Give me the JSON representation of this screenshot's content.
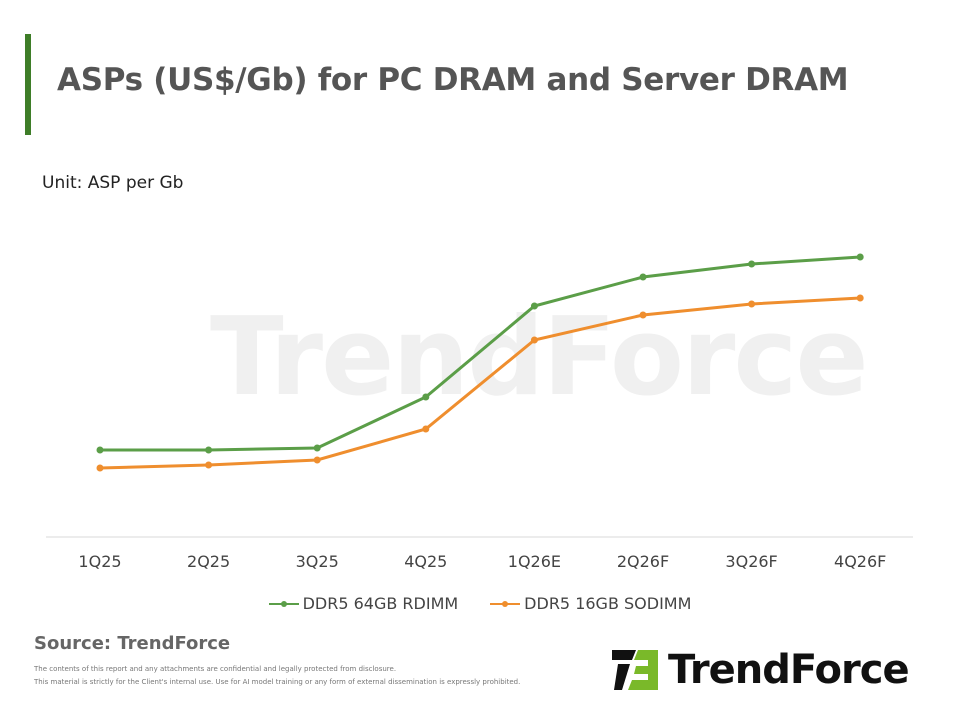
{
  "title": "ASPs (US$/Gb) for PC DRAM and Server DRAM",
  "unit_label": "Unit: ASP per Gb",
  "source": "Source: TrendForce",
  "disclaimer": [
    "The contents of this report and any attachments are confidential and legally protected from disclosure.",
    "This material is strictly for the Client's internal use. Use for AI model training or any form of external dissemination is expressly prohibited."
  ],
  "logo": {
    "text": "TrendForce",
    "accent": "#7ab929"
  },
  "watermark": "TrendForce",
  "chart_data": {
    "type": "line",
    "title": "ASPs (US$/Gb) for PC DRAM and Server DRAM",
    "ylabel": "Unit: ASP per Gb",
    "categories": [
      "1Q25",
      "2Q25",
      "3Q25",
      "4Q25",
      "1Q26E",
      "2Q26F",
      "3Q26F",
      "4Q26F"
    ],
    "ylim": [
      0,
      320
    ],
    "y_axis_labels_shown": false,
    "grid": false,
    "legend": "bottom",
    "series": [
      {
        "name": "DDR5 64GB RDIMM",
        "color": "#5b9e48",
        "values": [
          87,
          87,
          89,
          140,
          231,
          260,
          273,
          280
        ]
      },
      {
        "name": "DDR5 16GB SODIMM",
        "color": "#ef8e2e",
        "values": [
          69,
          72,
          77,
          108,
          197,
          222,
          233,
          239
        ]
      }
    ]
  }
}
